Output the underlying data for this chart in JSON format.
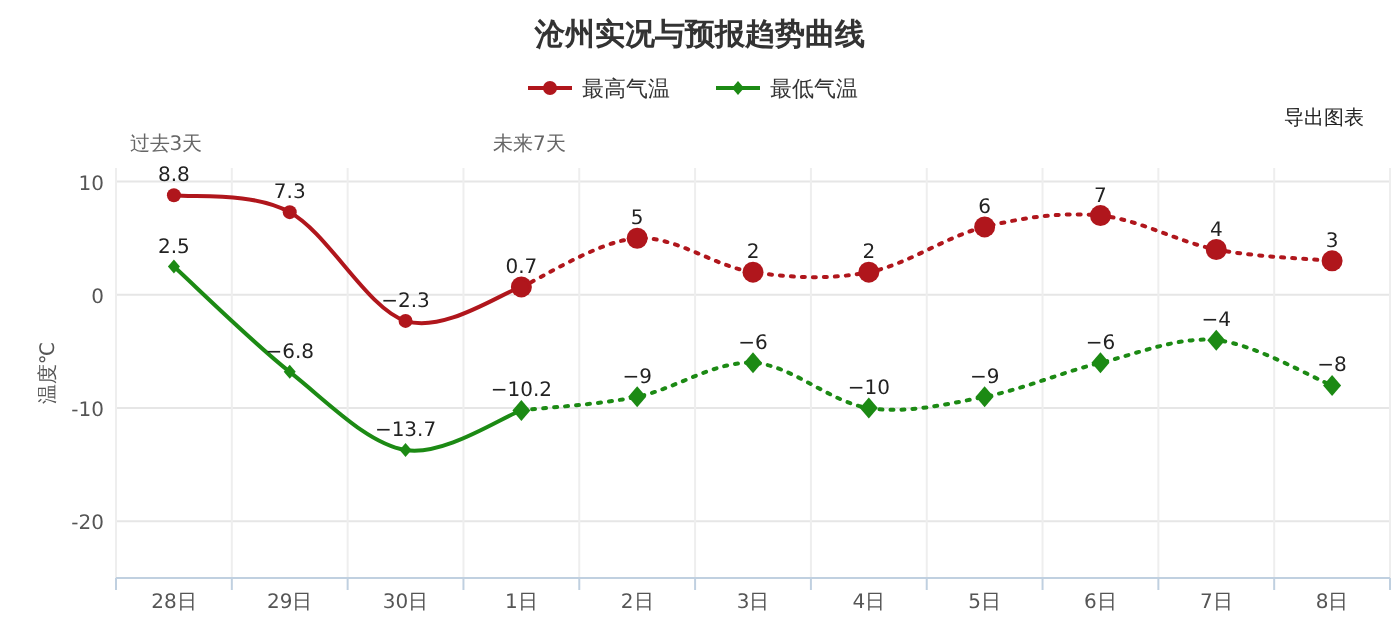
{
  "chart_data": {
    "type": "line",
    "title": "沧州实况与预报趋势曲线",
    "ylabel": "温度℃",
    "categories": [
      "28日",
      "29日",
      "30日",
      "1日",
      "2日",
      "3日",
      "4日",
      "5日",
      "6日",
      "7日",
      "8日"
    ],
    "series": [
      {
        "name": "最高气温",
        "color": "#b0161c",
        "marker": "circle",
        "line_style": "solid",
        "values": [
          8.8,
          7.3,
          -2.3,
          0.7,
          null,
          null,
          null,
          null,
          null,
          null,
          null
        ],
        "value_labels": [
          "8.8",
          "7.3",
          "−2.3",
          "0.7",
          null,
          null,
          null,
          null,
          null,
          null,
          null
        ]
      },
      {
        "color": "#b0161c",
        "marker": "circle",
        "line_style": "dotted",
        "values": [
          null,
          null,
          null,
          0.7,
          5,
          2,
          2,
          6,
          7,
          4,
          3
        ],
        "value_labels": [
          null,
          null,
          null,
          null,
          "5",
          "2",
          "2",
          "6",
          "7",
          "4",
          "3"
        ]
      },
      {
        "name": "最低气温",
        "color": "#1c8a14",
        "marker": "diamond",
        "line_style": "solid",
        "values": [
          2.5,
          -6.8,
          -13.7,
          -10.2,
          null,
          null,
          null,
          null,
          null,
          null,
          null
        ],
        "value_labels": [
          "2.5",
          "−6.8",
          "−13.7",
          "−10.2",
          null,
          null,
          null,
          null,
          null,
          null,
          null
        ]
      },
      {
        "color": "#1c8a14",
        "marker": "diamond",
        "line_style": "dotted",
        "values": [
          null,
          null,
          null,
          -10.2,
          -9,
          -6,
          -10,
          -9,
          -6,
          -4,
          -8
        ],
        "value_labels": [
          null,
          null,
          null,
          null,
          "−9",
          "−6",
          "−10",
          "−9",
          "−6",
          "−4",
          "−8"
        ]
      }
    ],
    "ylim": [
      -25,
      11.2
    ],
    "yticks": [
      -20,
      -10,
      0,
      10
    ],
    "grid": true,
    "legend": "top",
    "annotations": [
      "过去3天",
      "未来7天",
      "导出图表"
    ]
  }
}
